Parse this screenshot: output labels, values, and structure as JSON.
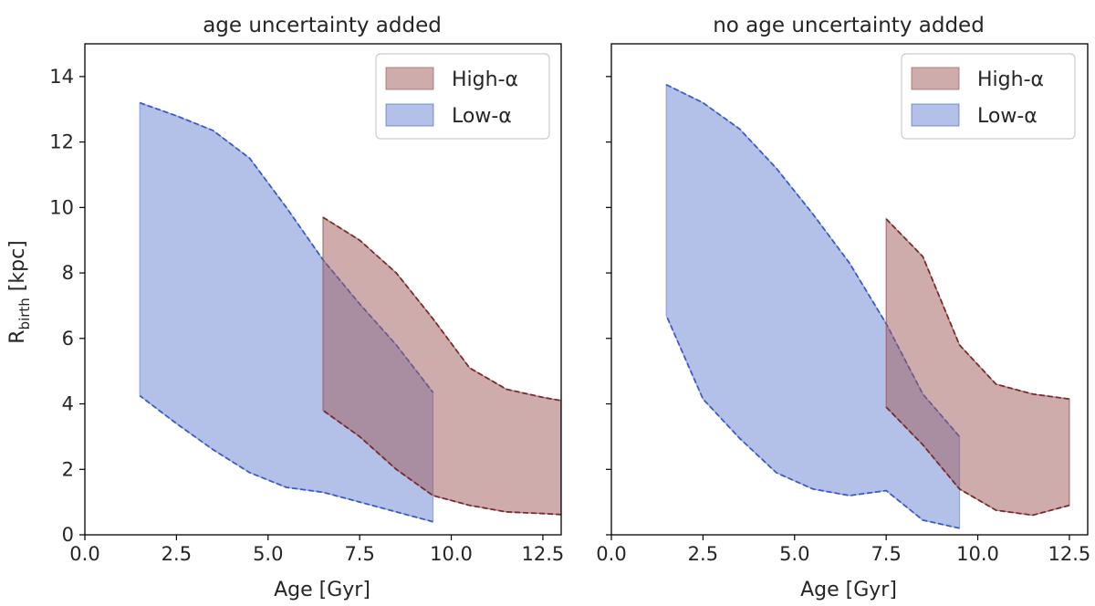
{
  "chart_data": [
    {
      "type": "area",
      "title": "age uncertainty added",
      "xlabel": "Age [Gyr]",
      "ylabel_main": "R",
      "ylabel_sub": "birth",
      "ylabel_unit": " [kpc]",
      "xlim": [
        0,
        13
      ],
      "ylim": [
        0,
        15
      ],
      "xticks": [
        0,
        2.5,
        5,
        7.5,
        10,
        12.5
      ],
      "xtick_labels": [
        "0.0",
        "2.5",
        "5.0",
        "7.5",
        "10.0",
        "12.5"
      ],
      "yticks": [
        0,
        2,
        4,
        6,
        8,
        10,
        12,
        14
      ],
      "ytick_labels": [
        "0",
        "2",
        "4",
        "6",
        "8",
        "10",
        "12",
        "14"
      ],
      "show_yticklabels": true,
      "legend": {
        "position": "upper-right",
        "entries": [
          "High-α",
          "Low-α"
        ]
      },
      "series": [
        {
          "name": "Low-α",
          "fill": "#8098d8",
          "line": "#3a5bc7",
          "x": [
            1.5,
            2.5,
            3.5,
            4.5,
            5.5,
            6.5,
            7.5,
            8.5,
            9.5
          ],
          "upper": [
            13.2,
            12.8,
            12.35,
            11.5,
            10.0,
            8.4,
            7.05,
            5.8,
            4.35
          ],
          "lower": [
            4.25,
            3.4,
            2.6,
            1.9,
            1.45,
            1.3,
            1.0,
            0.7,
            0.4
          ]
        },
        {
          "name": "High-α",
          "fill": "#a05a5a",
          "line": "#7a2a2a",
          "x": [
            6.5,
            7.5,
            8.5,
            9.5,
            10.5,
            11.5,
            12.5,
            13.0
          ],
          "upper": [
            9.7,
            9.0,
            8.0,
            6.6,
            5.1,
            4.45,
            4.2,
            4.1
          ],
          "lower": [
            3.8,
            3.0,
            2.0,
            1.2,
            0.9,
            0.7,
            0.65,
            0.62
          ]
        }
      ]
    },
    {
      "type": "area",
      "title": "no age uncertainty added",
      "xlabel": "Age [Gyr]",
      "xlim": [
        0,
        13
      ],
      "ylim": [
        0,
        15
      ],
      "xticks": [
        0,
        2.5,
        5,
        7.5,
        10,
        12.5
      ],
      "xtick_labels": [
        "0.0",
        "2.5",
        "5.0",
        "7.5",
        "10.0",
        "12.5"
      ],
      "yticks": [
        0,
        2,
        4,
        6,
        8,
        10,
        12,
        14
      ],
      "show_yticklabels": false,
      "legend": {
        "position": "upper-right",
        "entries": [
          "High-α",
          "Low-α"
        ]
      },
      "series": [
        {
          "name": "Low-α",
          "fill": "#8098d8",
          "line": "#3a5bc7",
          "x": [
            1.5,
            2.5,
            3.5,
            4.5,
            5.5,
            6.5,
            7.5,
            8.5,
            9.5
          ],
          "upper": [
            13.75,
            13.2,
            12.4,
            11.2,
            9.8,
            8.3,
            6.45,
            4.3,
            3.0
          ],
          "lower": [
            6.7,
            4.15,
            2.95,
            1.9,
            1.4,
            1.2,
            1.35,
            0.45,
            0.2
          ]
        },
        {
          "name": "High-α",
          "fill": "#a05a5a",
          "line": "#7a2a2a",
          "x": [
            7.5,
            8.5,
            9.5,
            10.5,
            11.5,
            12.5
          ],
          "upper": [
            9.65,
            8.5,
            5.8,
            4.6,
            4.3,
            4.15
          ],
          "lower": [
            3.9,
            2.75,
            1.4,
            0.75,
            0.6,
            0.9
          ]
        }
      ]
    }
  ]
}
